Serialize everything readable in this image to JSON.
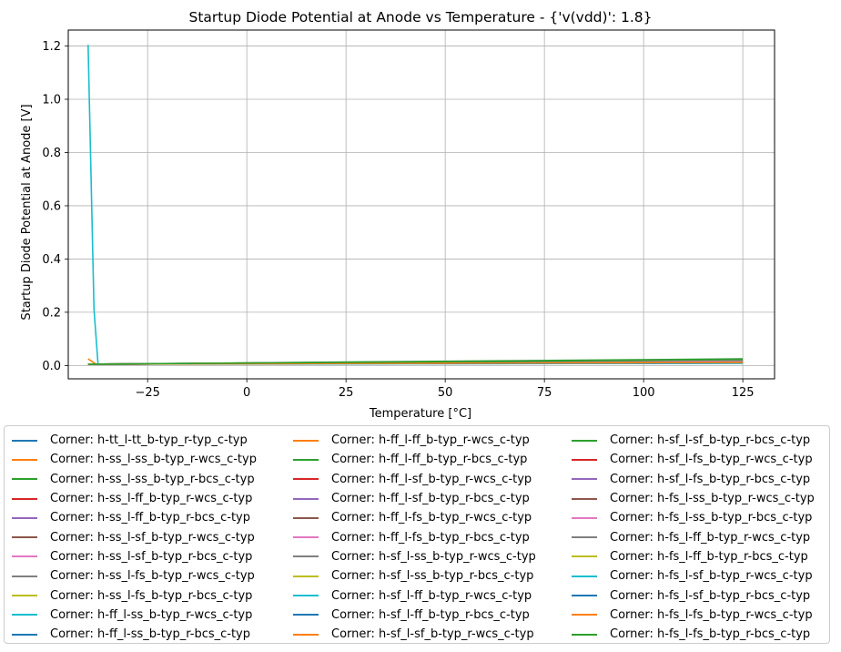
{
  "chart_data": {
    "type": "line",
    "title": "Startup Diode Potential at Anode vs Temperature - {'v(vdd)': 1.8}",
    "xlabel": "Temperature [°C]",
    "ylabel": "Startup Diode Potential at Anode [V]",
    "xlim": [
      -45,
      133
    ],
    "ylim": [
      -0.05,
      1.26
    ],
    "xticks": [
      -25,
      0,
      25,
      50,
      75,
      100,
      125
    ],
    "yticks": [
      0.0,
      0.2,
      0.4,
      0.6,
      0.8,
      1.0,
      1.2
    ],
    "grid": true,
    "legend_placement": "below",
    "palette": [
      "#1f77b4",
      "#ff7f0e",
      "#2ca02c",
      "#d62728",
      "#9467bd",
      "#8c564b",
      "#e377c2",
      "#7f7f7f",
      "#bcbd22",
      "#17becf"
    ],
    "series": [
      {
        "name": "Corner: h-tt_l-tt_b-typ_r-typ_c-typ",
        "x": [
          -40,
          125
        ],
        "y": [
          0.005,
          0.015
        ]
      },
      {
        "name": "Corner: h-ss_l-ss_b-typ_r-wcs_c-typ",
        "x": [
          -40,
          -38,
          125
        ],
        "y": [
          0.025,
          0.005,
          0.02
        ]
      },
      {
        "name": "Corner: h-ss_l-ss_b-typ_r-bcs_c-typ",
        "x": [
          -40,
          125
        ],
        "y": [
          0.005,
          0.025
        ]
      },
      {
        "name": "Corner: h-ss_l-ff_b-typ_r-wcs_c-typ",
        "x": [
          -40,
          125
        ],
        "y": [
          0.005,
          0.012
        ]
      },
      {
        "name": "Corner: h-ss_l-ff_b-typ_r-bcs_c-typ",
        "x": [
          -40,
          125
        ],
        "y": [
          0.005,
          0.022
        ]
      },
      {
        "name": "Corner: h-ss_l-sf_b-typ_r-wcs_c-typ",
        "x": [
          -40,
          125
        ],
        "y": [
          0.005,
          0.018
        ]
      },
      {
        "name": "Corner: h-ss_l-sf_b-typ_r-bcs_c-typ",
        "x": [
          -40,
          125
        ],
        "y": [
          0.005,
          0.015
        ]
      },
      {
        "name": "Corner: h-ss_l-fs_b-typ_r-wcs_c-typ",
        "x": [
          -40,
          125
        ],
        "y": [
          0.005,
          0.02
        ]
      },
      {
        "name": "Corner: h-ss_l-fs_b-typ_r-bcs_c-typ",
        "x": [
          -40,
          125
        ],
        "y": [
          0.005,
          0.018
        ]
      },
      {
        "name": "Corner: h-ff_l-ss_b-typ_r-wcs_c-typ",
        "x": [
          -40,
          -38.5,
          -37.5,
          125
        ],
        "y": [
          1.205,
          0.21,
          0.005,
          0.008
        ]
      },
      {
        "name": "Corner: h-ff_l-ss_b-typ_r-bcs_c-typ",
        "x": [
          -40,
          125
        ],
        "y": [
          0.005,
          0.01
        ]
      },
      {
        "name": "Corner: h-ff_l-ff_b-typ_r-wcs_c-typ",
        "x": [
          -40,
          125
        ],
        "y": [
          0.005,
          0.012
        ]
      },
      {
        "name": "Corner: h-ff_l-ff_b-typ_r-bcs_c-typ",
        "x": [
          -40,
          125
        ],
        "y": [
          0.005,
          0.015
        ]
      },
      {
        "name": "Corner: h-ff_l-sf_b-typ_r-wcs_c-typ",
        "x": [
          -40,
          125
        ],
        "y": [
          0.005,
          0.012
        ]
      },
      {
        "name": "Corner: h-ff_l-sf_b-typ_r-bcs_c-typ",
        "x": [
          -40,
          125
        ],
        "y": [
          0.005,
          0.014
        ]
      },
      {
        "name": "Corner: h-ff_l-fs_b-typ_r-wcs_c-typ",
        "x": [
          -40,
          125
        ],
        "y": [
          0.005,
          0.012
        ]
      },
      {
        "name": "Corner: h-ff_l-fs_b-typ_r-bcs_c-typ",
        "x": [
          -40,
          125
        ],
        "y": [
          0.005,
          0.013
        ]
      },
      {
        "name": "Corner: h-sf_l-ss_b-typ_r-wcs_c-typ",
        "x": [
          -40,
          125
        ],
        "y": [
          0.005,
          0.016
        ]
      },
      {
        "name": "Corner: h-sf_l-ss_b-typ_r-bcs_c-typ",
        "x": [
          -40,
          125
        ],
        "y": [
          0.005,
          0.018
        ]
      },
      {
        "name": "Corner: h-sf_l-ff_b-typ_r-wcs_c-typ",
        "x": [
          -40,
          125
        ],
        "y": [
          0.005,
          0.012
        ]
      },
      {
        "name": "Corner: h-sf_l-ff_b-typ_r-bcs_c-typ",
        "x": [
          -40,
          125
        ],
        "y": [
          0.005,
          0.014
        ]
      },
      {
        "name": "Corner: h-sf_l-sf_b-typ_r-wcs_c-typ",
        "x": [
          -40,
          125
        ],
        "y": [
          0.005,
          0.015
        ]
      },
      {
        "name": "Corner: h-sf_l-sf_b-typ_r-bcs_c-typ",
        "x": [
          -40,
          125
        ],
        "y": [
          0.005,
          0.016
        ]
      },
      {
        "name": "Corner: h-sf_l-fs_b-typ_r-wcs_c-typ",
        "x": [
          -40,
          125
        ],
        "y": [
          0.005,
          0.014
        ]
      },
      {
        "name": "Corner: h-sf_l-fs_b-typ_r-bcs_c-typ",
        "x": [
          -40,
          125
        ],
        "y": [
          0.005,
          0.015
        ]
      },
      {
        "name": "Corner: h-fs_l-ss_b-typ_r-wcs_c-typ",
        "x": [
          -40,
          125
        ],
        "y": [
          0.005,
          0.017
        ]
      },
      {
        "name": "Corner: h-fs_l-ss_b-typ_r-bcs_c-typ",
        "x": [
          -40,
          125
        ],
        "y": [
          0.005,
          0.018
        ]
      },
      {
        "name": "Corner: h-fs_l-ff_b-typ_r-wcs_c-typ",
        "x": [
          -40,
          125
        ],
        "y": [
          0.005,
          0.012
        ]
      },
      {
        "name": "Corner: h-fs_l-ff_b-typ_r-bcs_c-typ",
        "x": [
          -40,
          125
        ],
        "y": [
          0.005,
          0.013
        ]
      },
      {
        "name": "Corner: h-fs_l-sf_b-typ_r-wcs_c-typ",
        "x": [
          -40,
          125
        ],
        "y": [
          0.005,
          0.012
        ]
      },
      {
        "name": "Corner: h-fs_l-sf_b-typ_r-bcs_c-typ",
        "x": [
          -40,
          125
        ],
        "y": [
          0.005,
          0.013
        ]
      },
      {
        "name": "Corner: h-fs_l-fs_b-typ_r-wcs_c-typ",
        "x": [
          -40,
          125
        ],
        "y": [
          0.005,
          0.012
        ]
      },
      {
        "name": "Corner: h-fs_l-fs_b-typ_r-bcs_c-typ",
        "x": [
          -40,
          125
        ],
        "y": [
          0.005,
          0.022
        ]
      }
    ]
  }
}
